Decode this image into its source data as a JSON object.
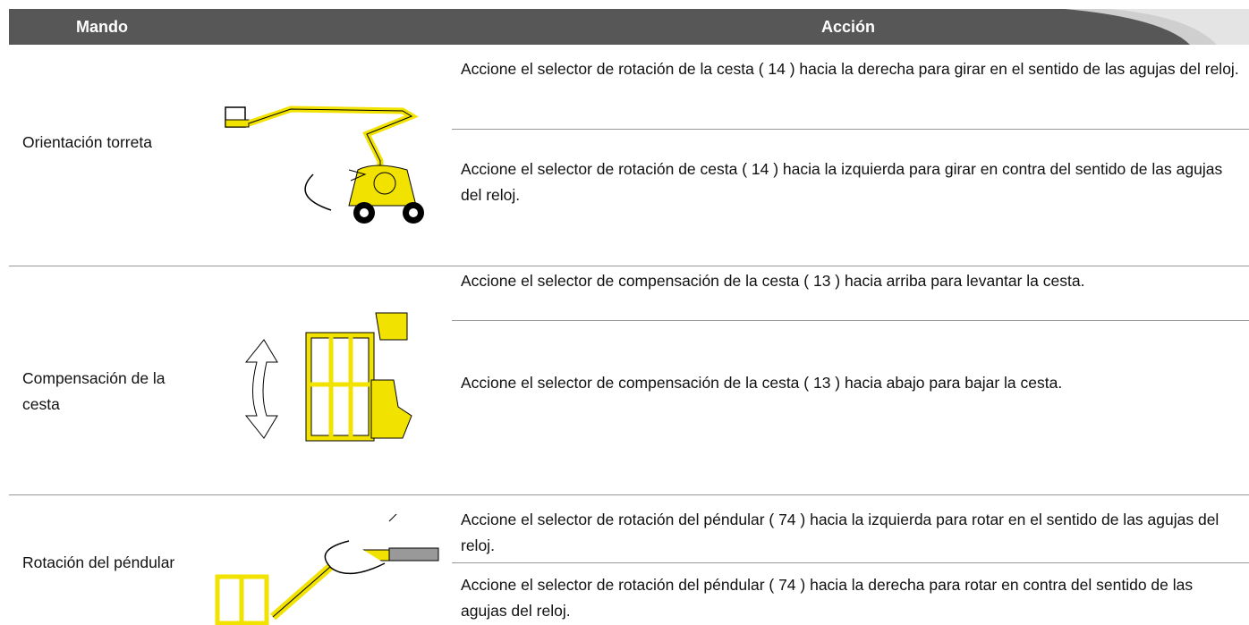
{
  "header": {
    "columns": [
      "Mando",
      "Acción"
    ]
  },
  "rows": [
    {
      "label": "Orientación torreta",
      "actions": [
        "Accione el selector de rotación de la cesta ( 14 ) hacia la derecha para girar en el sentido de las agujas del reloj.",
        "Accione el selector de rotación de cesta ( 14 ) hacia la izquierda para girar en contra del sentido de las agujas del reloj."
      ]
    },
    {
      "label": "Compensación de la cesta",
      "actions": [
        "Accione el selector de compensación de la cesta ( 13 ) hacia arriba para levantar la cesta.",
        "Accione el selector de compensación de la cesta ( 13 ) hacia abajo para bajar la cesta."
      ]
    },
    {
      "label": "Rotación del péndular",
      "actions": [
        "Accione el selector de rotación del péndular ( 74 ) hacia la izquierda para rotar en el sentido de las agujas del reloj.",
        "Accione el selector de rotación del péndular ( 74 ) hacia la derecha para rotar en contra del sentido de las agujas del reloj."
      ]
    }
  ]
}
